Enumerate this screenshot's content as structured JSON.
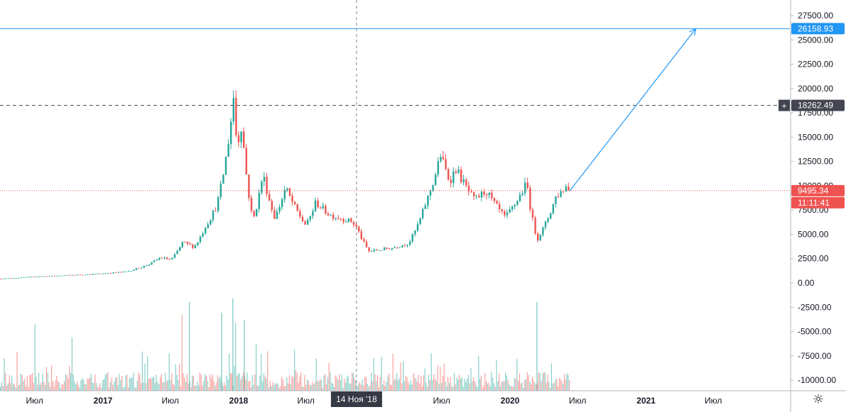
{
  "chart_data": {
    "type": "candlestick",
    "y_axis": {
      "ticks": [
        "27500.00",
        "25000.00",
        "22500.00",
        "20000.00",
        "17500.00",
        "15000.00",
        "12500.00",
        "10000.00",
        "7500.00",
        "5000.00",
        "2500.00",
        "0.00",
        "-2500.00",
        "-5000.00",
        "-7500.00",
        "-10000.00"
      ],
      "range": [
        -11000,
        29000
      ]
    },
    "x_axis": {
      "ticks": [
        {
          "label": "Июл",
          "bold": false
        },
        {
          "label": "2017",
          "bold": true
        },
        {
          "label": "Июл",
          "bold": false
        },
        {
          "label": "2018",
          "bold": true
        },
        {
          "label": "Июл",
          "bold": false
        },
        {
          "label": "Июл",
          "bold": false
        },
        {
          "label": "2020",
          "bold": true
        },
        {
          "label": "Июл",
          "bold": false
        },
        {
          "label": "2021",
          "bold": true
        },
        {
          "label": "Июл",
          "bold": false
        }
      ],
      "crosshair_label": "14 Ноя '18"
    },
    "price_anchors": [
      {
        "date": "2016-04",
        "price": 430
      },
      {
        "date": "2016-07",
        "price": 650
      },
      {
        "date": "2016-12",
        "price": 900
      },
      {
        "date": "2017-03",
        "price": 1150
      },
      {
        "date": "2017-05",
        "price": 1900
      },
      {
        "date": "2017-06",
        "price": 2600
      },
      {
        "date": "2017-07",
        "price": 2400
      },
      {
        "date": "2017-08",
        "price": 4200
      },
      {
        "date": "2017-09",
        "price": 3700
      },
      {
        "date": "2017-10",
        "price": 5800
      },
      {
        "date": "2017-11",
        "price": 8000
      },
      {
        "date": "2017-12-17",
        "price": 19500
      },
      {
        "date": "2017-12-25",
        "price": 14000
      },
      {
        "date": "2018-01-07",
        "price": 16500
      },
      {
        "date": "2018-02-06",
        "price": 6400
      },
      {
        "date": "2018-03-05",
        "price": 11300
      },
      {
        "date": "2018-04-06",
        "price": 6700
      },
      {
        "date": "2018-05-05",
        "price": 9800
      },
      {
        "date": "2018-06-29",
        "price": 5900
      },
      {
        "date": "2018-07-25",
        "price": 8300
      },
      {
        "date": "2018-09-01",
        "price": 7000
      },
      {
        "date": "2018-10-31",
        "price": 6300
      },
      {
        "date": "2018-11-14",
        "price": 5600
      },
      {
        "date": "2018-12-15",
        "price": 3250
      },
      {
        "date": "2019-02-15",
        "price": 3600
      },
      {
        "date": "2019-04-01",
        "price": 4100
      },
      {
        "date": "2019-05-15",
        "price": 8000
      },
      {
        "date": "2019-06-26",
        "price": 13200
      },
      {
        "date": "2019-07-20",
        "price": 10500
      },
      {
        "date": "2019-08-06",
        "price": 11800
      },
      {
        "date": "2019-09-25",
        "price": 8500
      },
      {
        "date": "2019-10-26",
        "price": 9500
      },
      {
        "date": "2019-12-17",
        "price": 6700
      },
      {
        "date": "2020-02-13",
        "price": 10300
      },
      {
        "date": "2020-03-12",
        "price": 4500
      },
      {
        "date": "2020-04-30",
        "price": 8800
      },
      {
        "date": "2020-06-01",
        "price": 10100
      },
      {
        "date": "2020-06-10",
        "price": 9495.34
      }
    ],
    "horizontal_levels": [
      {
        "price": 26158.93,
        "label": "26158.93",
        "color": "#2196f3",
        "style": "solid"
      },
      {
        "price": 18262.49,
        "label": "18262.49",
        "color": "#434651",
        "style": "dashed"
      },
      {
        "price": 9495.34,
        "label": "9495.34",
        "color": "#ef5350",
        "style": "dotted"
      }
    ],
    "countdown": "11:11:41",
    "projection": {
      "from_date": "2020-06-10",
      "from_price": 9495.34,
      "to_date": "2021-05-15",
      "to_price": 26158.93,
      "color": "#2196f3"
    },
    "crosshair_date": "2018-11-14",
    "colors": {
      "up": "#26a69a",
      "down": "#ef5350",
      "text": "#131722",
      "grid": "#e0e3eb"
    }
  },
  "ui": {
    "settings_icon": "gear-icon",
    "settings_glyph": "☼",
    "plus_glyph": "+"
  }
}
